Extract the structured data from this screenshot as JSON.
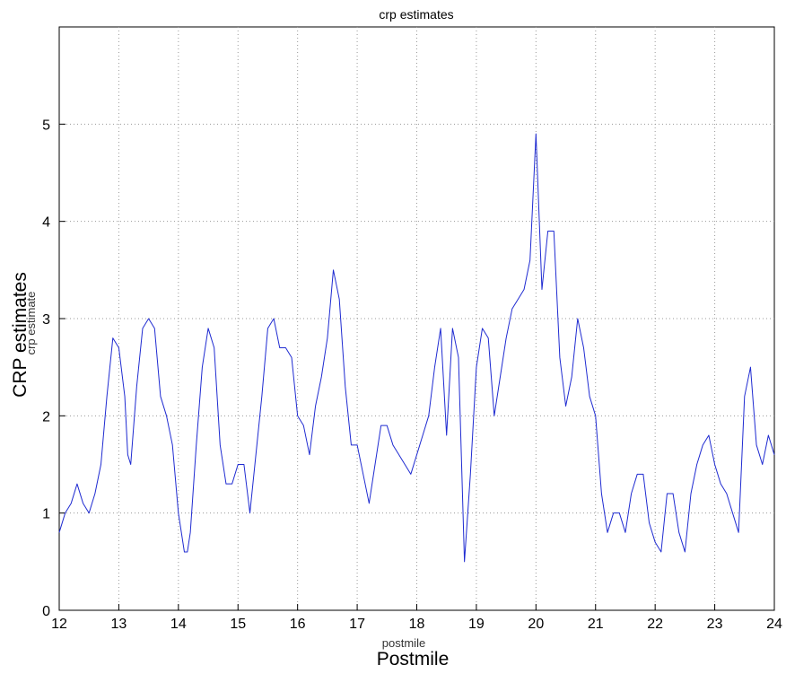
{
  "chart_data": {
    "type": "line",
    "title": "crp estimates",
    "xlabel": "postmile",
    "ylabel": "crp estimate",
    "overlay_xlabel": "Postmile",
    "overlay_ylabel": "CRP estimates",
    "xlim": [
      12,
      24
    ],
    "ylim": [
      0,
      6
    ],
    "xticks": [
      12,
      13,
      14,
      15,
      16,
      17,
      18,
      19,
      20,
      21,
      22,
      23,
      24
    ],
    "yticks": [
      0,
      1,
      2,
      3,
      4,
      5
    ],
    "grid": true,
    "line_color": "#1f2bd1",
    "series": [
      {
        "x": [
          12.0,
          12.1,
          12.2,
          12.3,
          12.4,
          12.5,
          12.6,
          12.7,
          12.8,
          12.9,
          13.0,
          13.1,
          13.15,
          13.2,
          13.3,
          13.4,
          13.5,
          13.6,
          13.7,
          13.8,
          13.9,
          14.0,
          14.1,
          14.15,
          14.2,
          14.3,
          14.4,
          14.5,
          14.6,
          14.7,
          14.8,
          14.9,
          15.0,
          15.1,
          15.2,
          15.3,
          15.4,
          15.5,
          15.6,
          15.7,
          15.8,
          15.9,
          16.0,
          16.1,
          16.2,
          16.3,
          16.4,
          16.5,
          16.6,
          16.7,
          16.8,
          16.9,
          17.0,
          17.1,
          17.2,
          17.3,
          17.4,
          17.5,
          17.6,
          17.7,
          17.8,
          17.9,
          18.0,
          18.1,
          18.2,
          18.3,
          18.4,
          18.5,
          18.6,
          18.7,
          18.8,
          18.9,
          19.0,
          19.1,
          19.2,
          19.3,
          19.4,
          19.5,
          19.6,
          19.7,
          19.8,
          19.9,
          20.0,
          20.1,
          20.2,
          20.3,
          20.4,
          20.5,
          20.6,
          20.7,
          20.8,
          20.9,
          21.0,
          21.1,
          21.2,
          21.3,
          21.4,
          21.5,
          21.6,
          21.7,
          21.8,
          21.9,
          22.0,
          22.1,
          22.2,
          22.3,
          22.4,
          22.5,
          22.6,
          22.7,
          22.8,
          22.9,
          23.0,
          23.1,
          23.2,
          23.3,
          23.4,
          23.5,
          23.6,
          23.7,
          23.8,
          23.9,
          24.0
        ],
        "y": [
          0.8,
          1.0,
          1.1,
          1.3,
          1.1,
          1.0,
          1.2,
          1.5,
          2.2,
          2.8,
          2.7,
          2.2,
          1.6,
          1.5,
          2.3,
          2.9,
          3.0,
          2.9,
          2.2,
          2.0,
          1.7,
          1.0,
          0.6,
          0.6,
          0.8,
          1.7,
          2.5,
          2.9,
          2.7,
          1.7,
          1.3,
          1.3,
          1.5,
          1.5,
          1.0,
          1.6,
          2.2,
          2.9,
          3.0,
          2.7,
          2.7,
          2.6,
          2.0,
          1.9,
          1.6,
          2.1,
          2.4,
          2.8,
          3.5,
          3.2,
          2.3,
          1.7,
          1.7,
          1.4,
          1.1,
          1.5,
          1.9,
          1.9,
          1.7,
          1.6,
          1.5,
          1.4,
          1.6,
          1.8,
          2.0,
          2.5,
          2.9,
          1.8,
          2.9,
          2.6,
          0.5,
          1.4,
          2.5,
          2.9,
          2.8,
          2.0,
          2.4,
          2.8,
          3.1,
          3.2,
          3.3,
          3.6,
          4.9,
          3.3,
          3.9,
          3.9,
          2.6,
          2.1,
          2.4,
          3.0,
          2.7,
          2.2,
          2.0,
          1.2,
          0.8,
          1.0,
          1.0,
          0.8,
          1.2,
          1.4,
          1.4,
          0.9,
          0.7,
          0.6,
          1.2,
          1.2,
          0.8,
          0.6,
          1.2,
          1.5,
          1.7,
          1.8,
          1.5,
          1.3,
          1.2,
          1.0,
          0.8,
          2.2,
          2.5,
          1.7,
          1.5,
          1.8,
          1.6
        ]
      }
    ]
  }
}
